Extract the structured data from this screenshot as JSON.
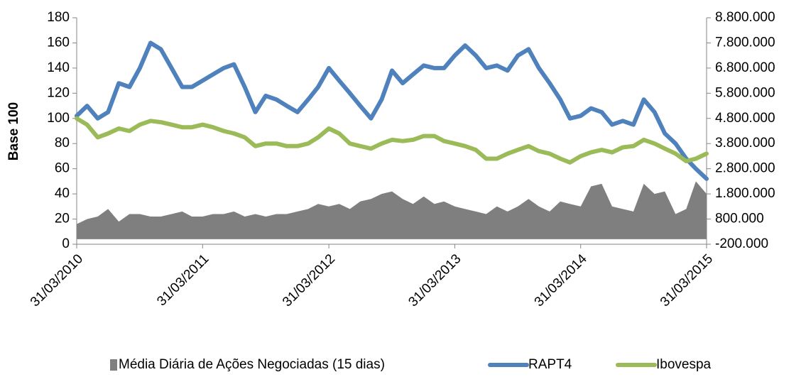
{
  "chart_data": {
    "type": "line",
    "ylabel": "Base 100",
    "x": [
      "31/03/2010",
      "30/04/2010",
      "31/05/2010",
      "30/06/2010",
      "31/07/2010",
      "31/08/2010",
      "30/09/2010",
      "31/10/2010",
      "30/11/2010",
      "31/12/2010",
      "31/01/2011",
      "28/02/2011",
      "31/03/2011",
      "30/04/2011",
      "31/05/2011",
      "30/06/2011",
      "31/07/2011",
      "31/08/2011",
      "30/09/2011",
      "31/10/2011",
      "30/11/2011",
      "31/12/2011",
      "31/01/2012",
      "29/02/2012",
      "31/03/2012",
      "30/04/2012",
      "31/05/2012",
      "30/06/2012",
      "31/07/2012",
      "31/08/2012",
      "30/09/2012",
      "31/10/2012",
      "30/11/2012",
      "31/12/2012",
      "31/01/2013",
      "28/02/2013",
      "31/03/2013",
      "30/04/2013",
      "31/05/2013",
      "30/06/2013",
      "31/07/2013",
      "31/08/2013",
      "30/09/2013",
      "31/10/2013",
      "30/11/2013",
      "31/12/2013",
      "31/01/2014",
      "28/02/2014",
      "31/03/2014",
      "30/04/2014",
      "31/05/2014",
      "30/06/2014",
      "31/07/2014",
      "31/08/2014",
      "30/09/2014",
      "31/10/2014",
      "30/11/2014",
      "31/12/2014",
      "31/01/2015",
      "28/02/2015",
      "31/03/2015"
    ],
    "series": [
      {
        "name": "Média Diária de Ações Negociadas (15 dias)",
        "color": "#7f7f7f",
        "kind": "area",
        "axis": "y2",
        "values": [
          600000,
          800000,
          900000,
          1200000,
          700000,
          1000000,
          1000000,
          900000,
          900000,
          1000000,
          1100000,
          900000,
          900000,
          1000000,
          1000000,
          1100000,
          900000,
          1000000,
          900000,
          1000000,
          1000000,
          1100000,
          1200000,
          1400000,
          1300000,
          1400000,
          1200000,
          1500000,
          1600000,
          1800000,
          1900000,
          1600000,
          1400000,
          1700000,
          1400000,
          1500000,
          1300000,
          1200000,
          1100000,
          1000000,
          1300000,
          1100000,
          1300000,
          1600000,
          1300000,
          1100000,
          1500000,
          1400000,
          1300000,
          2100000,
          2200000,
          1300000,
          1200000,
          1100000,
          2200000,
          1800000,
          1900000,
          1000000,
          1200000,
          2300000,
          1800000
        ]
      },
      {
        "name": "RAPT4",
        "color": "#4f81bd",
        "kind": "line",
        "values": [
          102,
          110,
          100,
          105,
          128,
          125,
          140,
          160,
          155,
          140,
          125,
          125,
          130,
          135,
          140,
          143,
          125,
          105,
          118,
          115,
          110,
          105,
          115,
          125,
          140,
          130,
          120,
          110,
          100,
          115,
          138,
          128,
          135,
          142,
          140,
          140,
          150,
          158,
          150,
          140,
          142,
          138,
          150,
          155,
          140,
          128,
          115,
          100,
          102,
          108,
          105,
          95,
          98,
          95,
          115,
          105,
          88,
          80,
          68,
          60,
          52
        ]
      },
      {
        "name": "Ibovespa",
        "color": "#9bbb59",
        "kind": "line",
        "values": [
          100,
          95,
          85,
          88,
          92,
          90,
          95,
          98,
          97,
          95,
          93,
          93,
          95,
          93,
          90,
          88,
          85,
          78,
          80,
          80,
          78,
          78,
          80,
          85,
          92,
          88,
          80,
          78,
          76,
          80,
          83,
          82,
          83,
          86,
          86,
          82,
          80,
          78,
          75,
          68,
          68,
          72,
          75,
          78,
          74,
          72,
          68,
          65,
          70,
          73,
          75,
          73,
          77,
          78,
          83,
          80,
          76,
          72,
          66,
          68,
          72
        ]
      }
    ],
    "xticks": [
      "31/03/2010",
      "31/03/2011",
      "31/03/2012",
      "31/03/2013",
      "31/03/2014",
      "31/03/2015"
    ],
    "ylim": [
      0,
      180
    ],
    "yticks": [
      0,
      20,
      40,
      60,
      80,
      100,
      120,
      140,
      160,
      180
    ],
    "y2lim": [
      -200000,
      8800000
    ],
    "y2ticks": [
      {
        "value": -200000,
        "label": "-200.000"
      },
      {
        "value": 800000,
        "label": "800.000"
      },
      {
        "value": 1800000,
        "label": "1.800.000"
      },
      {
        "value": 2800000,
        "label": "2.800.000"
      },
      {
        "value": 3800000,
        "label": "3.800.000"
      },
      {
        "value": 4800000,
        "label": "4.800.000"
      },
      {
        "value": 5800000,
        "label": "5.800.000"
      },
      {
        "value": 6800000,
        "label": "6.800.000"
      },
      {
        "value": 7800000,
        "label": "7.800.000"
      },
      {
        "value": 8800000,
        "label": "8.800.000"
      }
    ],
    "legend": "bottom"
  }
}
